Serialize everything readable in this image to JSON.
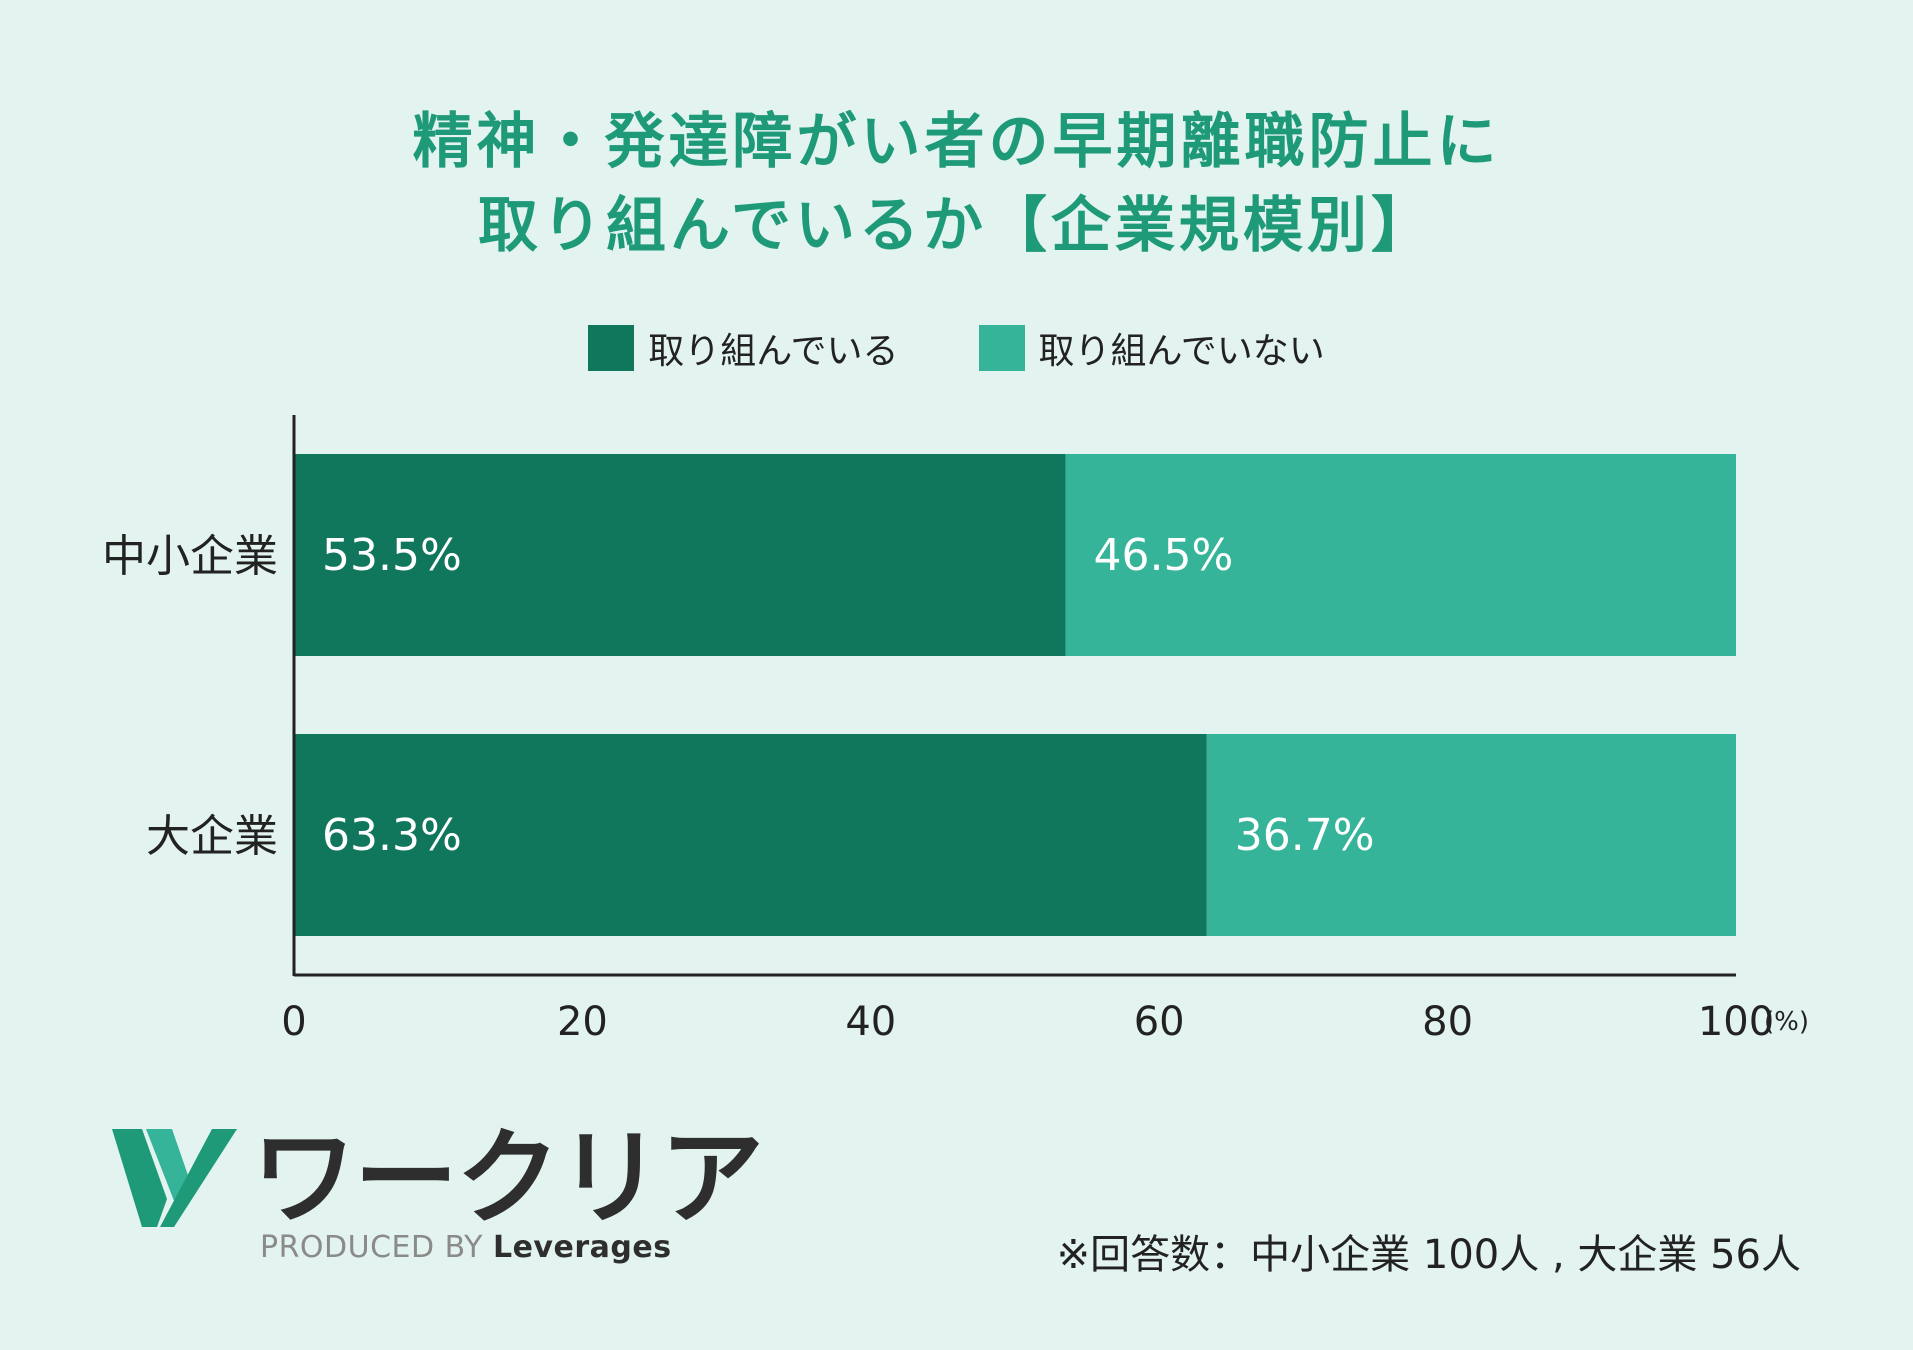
{
  "title_lines": [
    "精神・発達障がい者の早期離職防止に",
    "取り組んでいるか【企業規模別】"
  ],
  "legend": [
    {
      "label": "取り組んでいる",
      "color": "#10765c"
    },
    {
      "label": "取り組んでいない",
      "color": "#36b499"
    }
  ],
  "logo": {
    "icon": "w-logo-icon",
    "wordmark": "ワークリア",
    "produced_by": "PRODUCED BY",
    "brand": "Leverages"
  },
  "note": "※回答数：中小企業 100人 , 大企業 56人",
  "chart_data": {
    "type": "bar",
    "orientation": "horizontal",
    "stacked": true,
    "categories": [
      "中小企業",
      "大企業"
    ],
    "series": [
      {
        "name": "取り組んでいる",
        "values": [
          53.5,
          63.3
        ],
        "labels": [
          "53.5%",
          "63.3%"
        ],
        "color": "#10765c"
      },
      {
        "name": "取り組んでいない",
        "values": [
          46.5,
          36.7
        ],
        "labels": [
          "46.5%",
          "36.7%"
        ],
        "color": "#36b499"
      }
    ],
    "xlim": [
      0,
      100
    ],
    "xticks": [
      "0",
      "20",
      "40",
      "60",
      "80",
      "100"
    ],
    "xunit": "(%)",
    "grid": false,
    "legend_position": "top"
  }
}
